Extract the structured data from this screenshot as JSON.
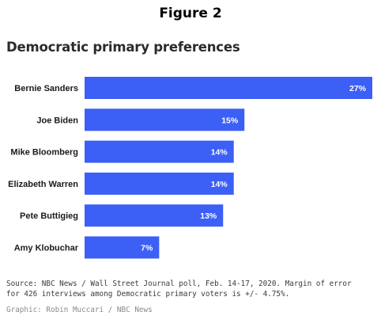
{
  "figure_label": "Figure 2",
  "chart_data": {
    "type": "bar",
    "orientation": "horizontal",
    "title": "Democratic primary preferences",
    "categories": [
      "Bernie Sanders",
      "Joe Biden",
      "Mike Bloomberg",
      "Elizabeth Warren",
      "Pete Buttigieg",
      "Amy Klobuchar"
    ],
    "values": [
      27,
      15,
      14,
      14,
      13,
      7
    ],
    "value_labels": [
      "27%",
      "15%",
      "14%",
      "14%",
      "13%",
      "7%"
    ],
    "xlim": [
      0,
      27
    ],
    "grid": false,
    "legend": "none",
    "bar_color": "#3c5ff5"
  },
  "footer": {
    "source_line1": "Source: NBC News / Wall Street Journal poll, Feb. 14-17, 2020. Margin of error",
    "source_line2": "for 426 interviews among Democratic primary voters is +/- 4.75%.",
    "credit": "Graphic: Robin Muccari / NBC News"
  }
}
